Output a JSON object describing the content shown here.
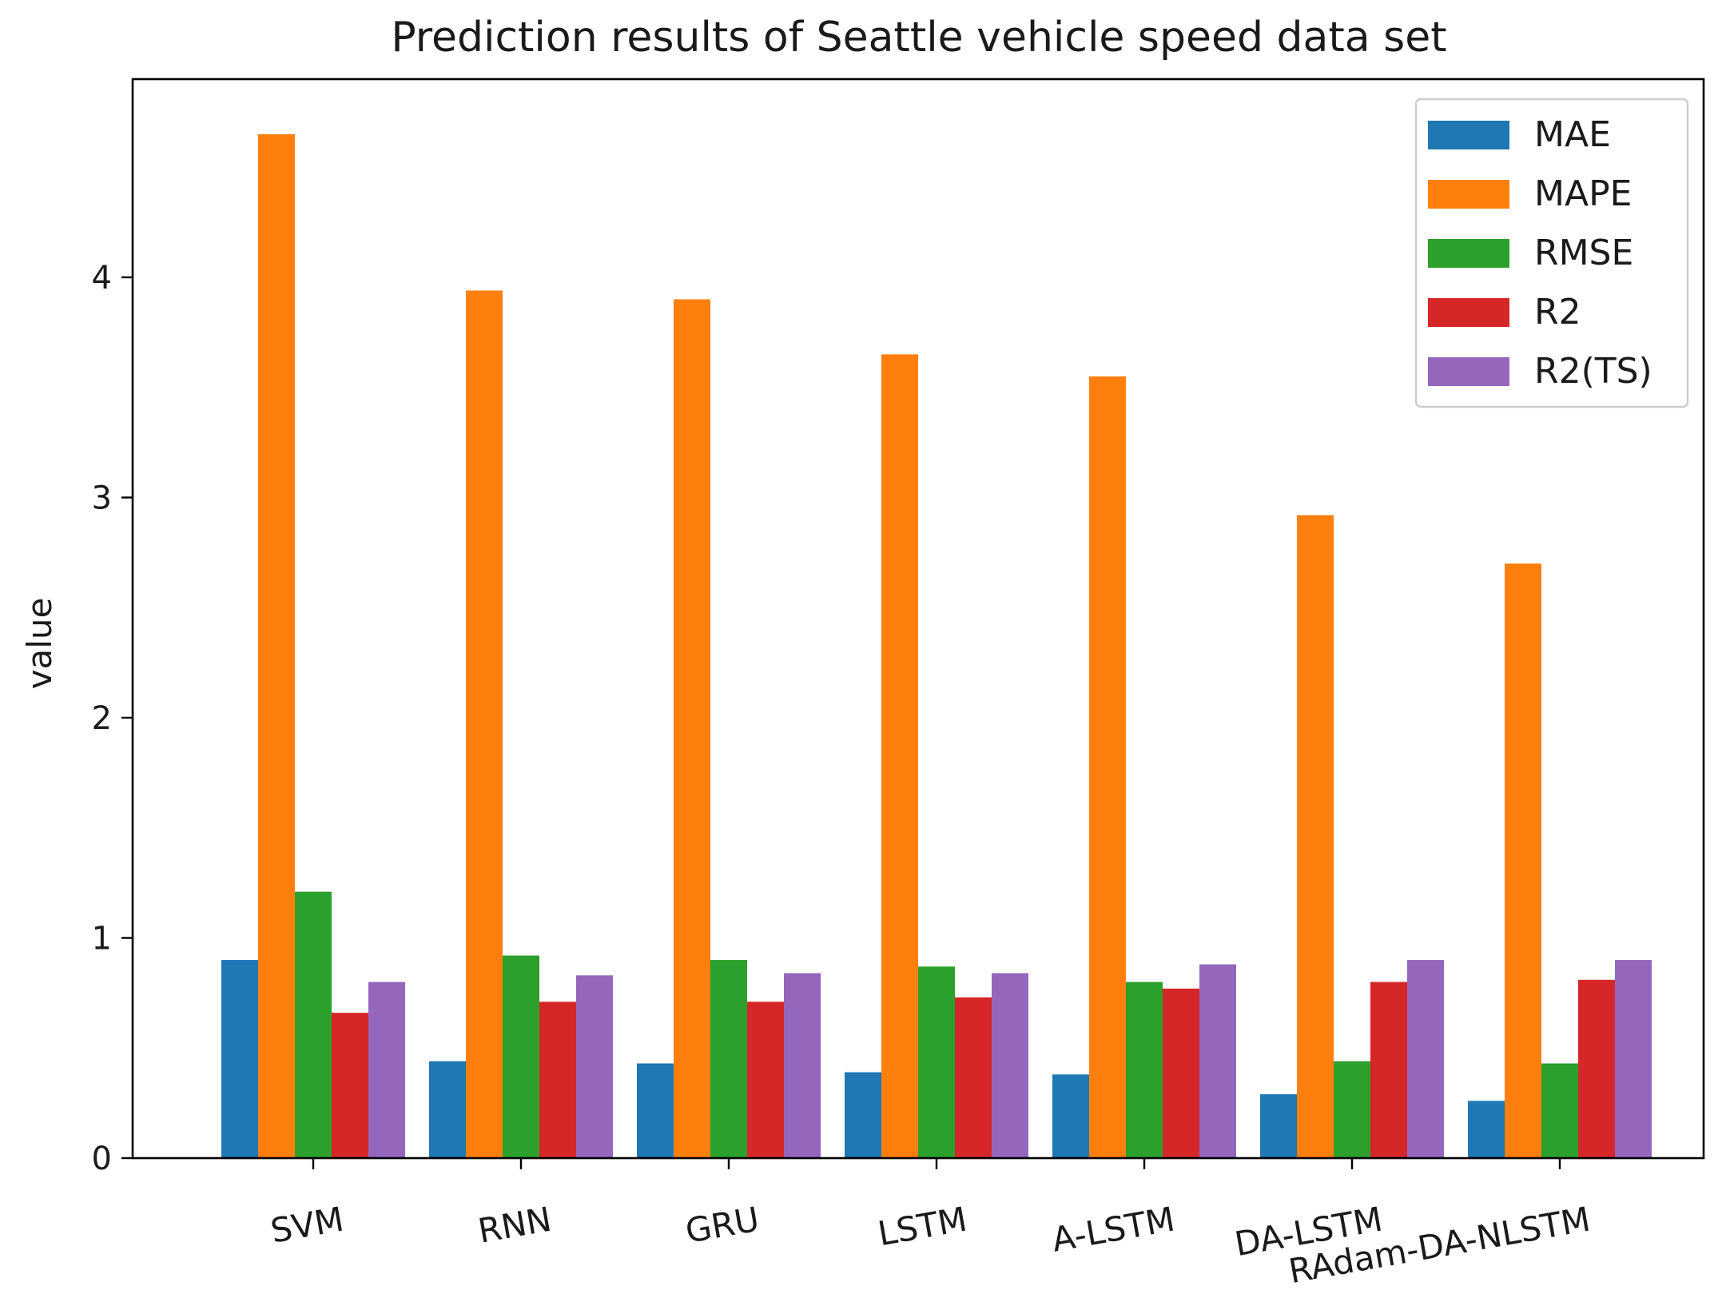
{
  "chart_data": {
    "type": "bar",
    "title": "Prediction results of Seattle vehicle speed data set",
    "xlabel": "",
    "ylabel": "value",
    "ylim": [
      0,
      4.9
    ],
    "yticks": [
      "0",
      "1",
      "2",
      "3",
      "4"
    ],
    "categories": [
      "SVM",
      "RNN",
      "GRU",
      "LSTM",
      "A-LSTM",
      "DA-LSTM",
      "RAdam-DA-NLSTM"
    ],
    "legend_position": "top-right",
    "series": [
      {
        "name": "MAE",
        "color": "#1f77b4",
        "values": [
          0.9,
          0.44,
          0.43,
          0.39,
          0.38,
          0.29,
          0.26
        ]
      },
      {
        "name": "MAPE",
        "color": "#ff7f0e",
        "values": [
          4.65,
          3.94,
          3.9,
          3.65,
          3.55,
          2.92,
          2.7
        ]
      },
      {
        "name": "RMSE",
        "color": "#2ca02c",
        "values": [
          1.21,
          0.92,
          0.9,
          0.87,
          0.8,
          0.44,
          0.43
        ]
      },
      {
        "name": "R2",
        "color": "#d62728",
        "values": [
          0.66,
          0.71,
          0.71,
          0.73,
          0.77,
          0.8,
          0.81
        ]
      },
      {
        "name": "R2(TS)",
        "color": "#9467bd",
        "values": [
          0.8,
          0.83,
          0.84,
          0.84,
          0.88,
          0.9,
          0.9
        ]
      }
    ]
  }
}
